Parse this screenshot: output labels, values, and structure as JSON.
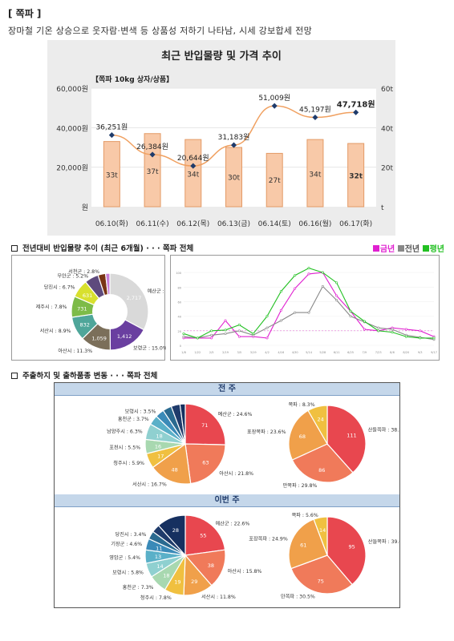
{
  "header": {
    "title": "[ 쪽파 ]",
    "subtitle": "장마철 기온 상승으로 웃자람·변색 등 상품성 저하기 나타남, 시세 강보합세 전망"
  },
  "chart_data": [
    {
      "type": "bar+line",
      "title": "최근 반입물량 및 가격 추이",
      "annotation": "【쪽파 10kg 상자/상품】",
      "categories": [
        "06.10(화)",
        "06.11(수)",
        "06.12(목)",
        "06.13(금)",
        "06.14(토)",
        "06.16(월)",
        "06.17(화)"
      ],
      "series": [
        {
          "kind": "bar",
          "axis": "right",
          "values": [
            33,
            37,
            34,
            30,
            27,
            34,
            32
          ],
          "labels": [
            "33t",
            "37t",
            "34t",
            "30t",
            "27t",
            "34t",
            "32t"
          ]
        },
        {
          "kind": "line",
          "axis": "left",
          "values": [
            36251,
            26384,
            20644,
            31183,
            51009,
            45197,
            47718
          ],
          "labels": [
            "36,251원",
            "26,384원",
            "20,644원",
            "31,183원",
            "51,009원",
            "45,197원",
            "47,718원"
          ]
        }
      ],
      "y_left": {
        "ticks": [
          "원",
          "20,000원",
          "40,000원",
          "60,000원"
        ],
        "range": [
          0,
          60000
        ]
      },
      "y_right": {
        "ticks": [
          "t",
          "20t",
          "40t",
          "60t"
        ],
        "range": [
          0,
          60
        ]
      },
      "colors": {
        "bar_fill": "#f8c9a8",
        "bar_stroke": "#e39a66",
        "line": "#f0a060",
        "marker": "#1f3b6b"
      }
    },
    {
      "type": "pie",
      "title": "전년대비 반입물량 추이 (최근 6개월) · · · 쪽파 전체",
      "slices": [
        {
          "label": "예산군 : 29.0%",
          "value": 2717,
          "pct": 29.0,
          "color": "#d9d9d9"
        },
        {
          "label": "보령군 : 15.0%",
          "value": 1412,
          "pct": 15.0,
          "color": "#6a3fa0"
        },
        {
          "label": "아산시 : 11.3%",
          "value": 1059,
          "pct": 11.3,
          "color": "#7b6f5a"
        },
        {
          "label": "서산시 : 8.9%",
          "value": 832,
          "pct": 8.9,
          "color": "#4fa69a"
        },
        {
          "label": "제주시 : 7.8%",
          "value": 731,
          "pct": 7.8,
          "color": "#7dbb48"
        },
        {
          "label": "당진시 : 6.7%",
          "value": 631,
          "pct": 6.7,
          "color": "#d8e02e"
        },
        {
          "label": "무안군 : 5.2%",
          "value": 488,
          "pct": 5.2,
          "color": "#5e4a7d"
        },
        {
          "label": "서천군 : 2.8%",
          "value": 263,
          "pct": 2.8,
          "color": "#7a3515"
        },
        {
          "label": "",
          "value": 150,
          "pct": 1.6,
          "color": "#c77dd6"
        }
      ],
      "value_labels": [
        "2,717",
        "1,412",
        "1,059",
        "832",
        "731",
        "631"
      ]
    },
    {
      "type": "line",
      "legend": [
        "금년",
        "전년",
        "평년"
      ],
      "x": [
        "1/8",
        "1/22",
        "2/5",
        "2/19",
        "3/5",
        "3/19",
        "4/2",
        "4/16",
        "4/30",
        "5/14",
        "5/28",
        "6/11",
        "6/25",
        "7/9",
        "7/23",
        "8/6",
        "8/20",
        "9/3",
        "9/17"
      ],
      "y_ticks": [
        "100",
        "80",
        "60",
        "40",
        "20",
        "0"
      ],
      "y_range": [
        0,
        110
      ],
      "series": [
        {
          "name": "금년",
          "color": "#e020d0",
          "values": [
            10,
            10,
            10,
            34,
            12,
            12,
            10,
            48,
            78,
            98,
            100,
            68,
            47,
            22,
            20,
            24,
            22,
            20,
            12
          ]
        },
        {
          "name": "전년",
          "color": "#888888",
          "values": [
            12,
            10,
            14,
            16,
            20,
            14,
            24,
            34,
            45,
            45,
            81,
            62,
            40,
            32,
            24,
            22,
            14,
            11,
            8
          ]
        },
        {
          "name": "평년",
          "color": "#22c022",
          "values": [
            16,
            10,
            20,
            21,
            28,
            16,
            40,
            74,
            96,
            106,
            100,
            86,
            47,
            33,
            20,
            18,
            12,
            10,
            10
          ]
        }
      ],
      "reference_line": 20
    }
  ],
  "legend_top": {
    "items": [
      {
        "label": "금년",
        "color": "#e020d0"
      },
      {
        "label": "전년",
        "color": "#888888"
      },
      {
        "label": "평년",
        "color": "#22c022"
      }
    ]
  },
  "sections": {
    "monthly": "전년대비 반입물량 추이 (최근 6개월) · · · 쪽파 전체",
    "origin": "주출하지 및 출하품종 변동 · · · 쪽파 전체"
  },
  "panels": [
    {
      "title": "전 주",
      "region_pie": {
        "slices": [
          {
            "label": "예산군 : 24.6%",
            "value": 71,
            "color": "#e8474f"
          },
          {
            "label": "아산시 : 21.8%",
            "value": 63,
            "color": "#f07a5a"
          },
          {
            "label": "서산시 : 16.7%",
            "value": 48,
            "color": "#f0a04a"
          },
          {
            "label": "청주시 : 5.9%",
            "value": 17,
            "color": "#f0c040"
          },
          {
            "label": "포천시 : 5.5%",
            "value": 16,
            "color": "#a8d8b0"
          },
          {
            "label": "남양주시 : 6.3%",
            "value": 18,
            "color": "#8fd0d0"
          },
          {
            "label": "홍천군 : 3.7%",
            "value": 11,
            "color": "#5ab0c8"
          },
          {
            "label": "보령시 : 3.5%",
            "value": 10,
            "color": "#3a8ab8"
          },
          {
            "label": "",
            "value": 10,
            "color": "#2a6a90"
          },
          {
            "label": "",
            "value": 10,
            "color": "#1f3b6b"
          },
          {
            "label": "",
            "value": 6,
            "color": "#163060"
          }
        ]
      },
      "variety_pie": {
        "slices": [
          {
            "label": "산들쪽파 : 38.3%",
            "value": 111,
            "color": "#e8474f"
          },
          {
            "label": "만쪽파 : 29.8%",
            "value": 86,
            "color": "#f07a5a"
          },
          {
            "label": "포장쪽파 : 23.6%",
            "value": 68,
            "color": "#f0a04a"
          },
          {
            "label": "쪽파 : 8.3%",
            "value": 24,
            "color": "#f0c040"
          }
        ]
      }
    },
    {
      "title": "이번 주",
      "region_pie": {
        "slices": [
          {
            "label": "예산군 : 22.6%",
            "value": 55,
            "color": "#e8474f"
          },
          {
            "label": "아산시 : 15.8%",
            "value": 38,
            "color": "#f07a5a"
          },
          {
            "label": "서산시 : 11.8%",
            "value": 29,
            "color": "#f0a04a"
          },
          {
            "label": "청주시 : 7.8%",
            "value": 19,
            "color": "#f0c040"
          },
          {
            "label": "홍천군 : 7.3%",
            "value": 18,
            "color": "#a8d8b0"
          },
          {
            "label": "보령시 : 5.8%",
            "value": 14,
            "color": "#8fd0d0"
          },
          {
            "label": "영암군 : 5.4%",
            "value": 13,
            "color": "#5ab0c8"
          },
          {
            "label": "기장군 : 4.6%",
            "value": 11,
            "color": "#3a8ab8"
          },
          {
            "label": "당진시 : 3.4%",
            "value": 8,
            "color": "#2a6a90"
          },
          {
            "label": "",
            "value": 8,
            "color": "#1f3b6b"
          },
          {
            "label": "",
            "value": 28,
            "color": "#163060"
          }
        ]
      },
      "variety_pie": {
        "slices": [
          {
            "label": "산들쪽파 : 39.0%",
            "value": 95,
            "color": "#e8474f"
          },
          {
            "label": "만쪽파 : 30.5%",
            "value": 75,
            "color": "#f07a5a"
          },
          {
            "label": "포장쪽파 : 24.9%",
            "value": 61,
            "color": "#f0a04a"
          },
          {
            "label": "쪽파 : 5.6%",
            "value": 14,
            "color": "#f0c040"
          }
        ]
      }
    }
  ]
}
